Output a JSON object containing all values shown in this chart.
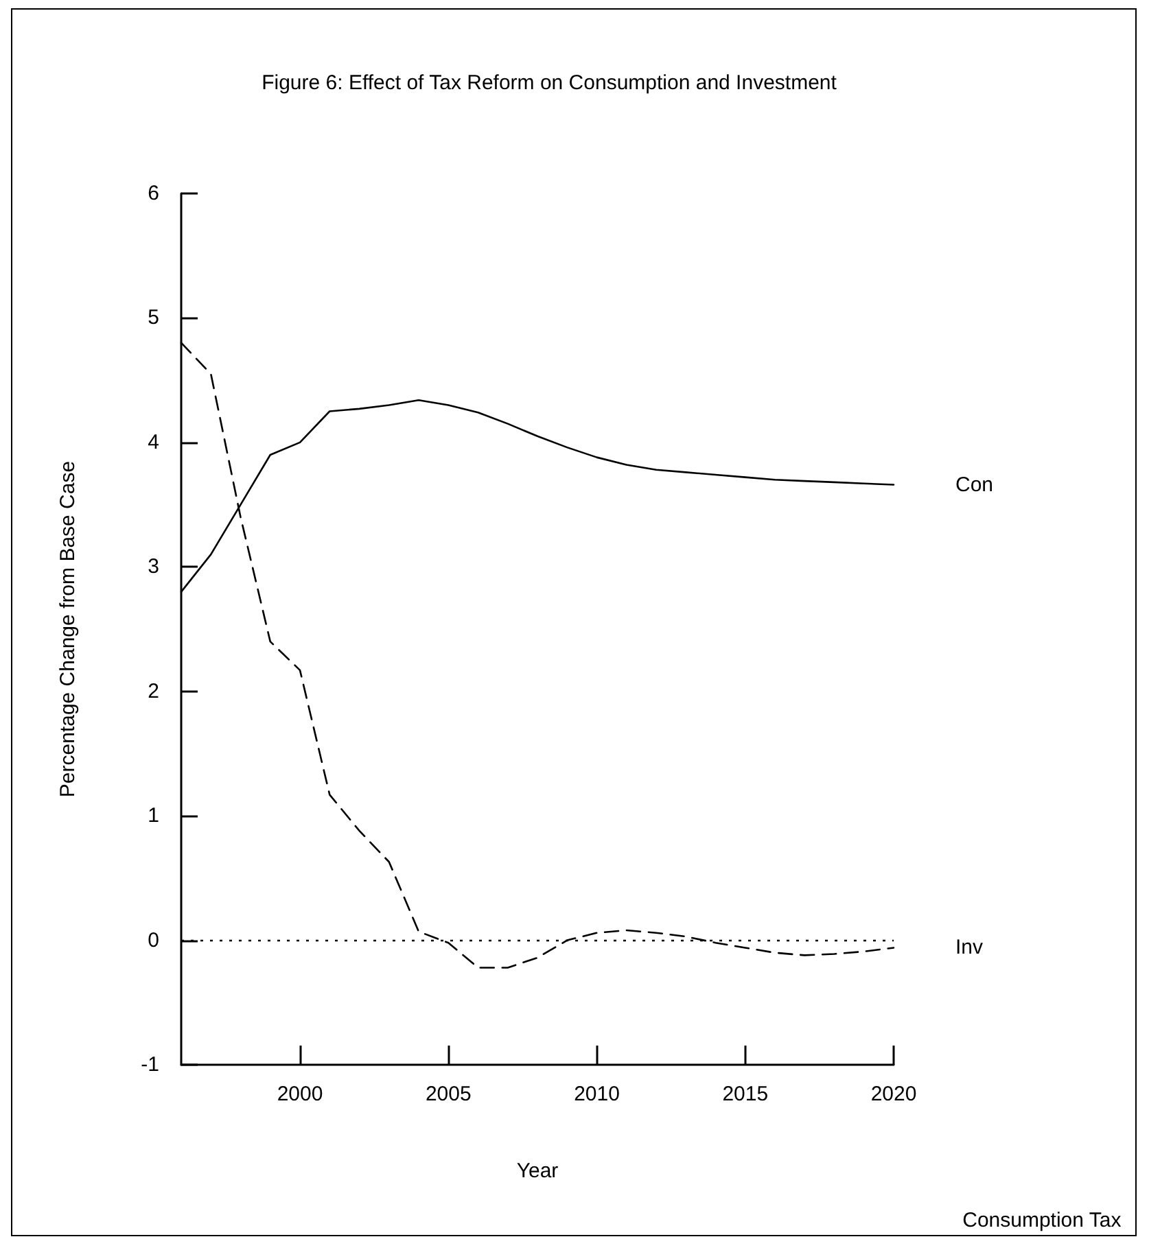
{
  "chart_data": {
    "type": "line",
    "title": "Figure 6: Effect of Tax Reform on Consumption and Investment",
    "xlabel": "Year",
    "ylabel": "Percentage Change from Base Case",
    "annotations": [
      "Consumption Tax"
    ],
    "x": [
      1996,
      1997,
      1998,
      1999,
      2000,
      2001,
      2002,
      2003,
      2004,
      2005,
      2006,
      2007,
      2008,
      2009,
      2010,
      2011,
      2012,
      2013,
      2014,
      2015,
      2016,
      2017,
      2018,
      2019,
      2020
    ],
    "series": [
      {
        "name": "Con",
        "color": "#000000",
        "line_style": "solid",
        "values": [
          2.8,
          3.1,
          3.5,
          3.9,
          4.0,
          4.25,
          4.27,
          4.3,
          4.34,
          4.3,
          4.24,
          4.15,
          4.05,
          3.96,
          3.88,
          3.82,
          3.78,
          3.76,
          3.74,
          3.72,
          3.7,
          3.69,
          3.68,
          3.67,
          3.66
        ]
      },
      {
        "name": "Inv",
        "color": "#000000",
        "line_style": "dashed",
        "values": [
          4.8,
          4.55,
          3.4,
          2.4,
          2.17,
          1.17,
          0.88,
          0.63,
          0.07,
          -0.02,
          -0.22,
          -0.22,
          -0.14,
          0.0,
          0.06,
          0.08,
          0.06,
          0.03,
          -0.02,
          -0.06,
          -0.1,
          -0.12,
          -0.11,
          -0.09,
          -0.06
        ]
      }
    ],
    "xlim": [
      1996,
      2020
    ],
    "xticks": [
      2000,
      2005,
      2010,
      2015,
      2020
    ],
    "ylim": [
      -1,
      6
    ],
    "yticks": [
      -1,
      0,
      1,
      2,
      3,
      4,
      5,
      6
    ],
    "ref_lines": [
      {
        "axis": "y",
        "value": 0,
        "color": "#000000",
        "line_style": "dotted"
      }
    ],
    "grid": false,
    "legend": false,
    "marker": "none"
  }
}
